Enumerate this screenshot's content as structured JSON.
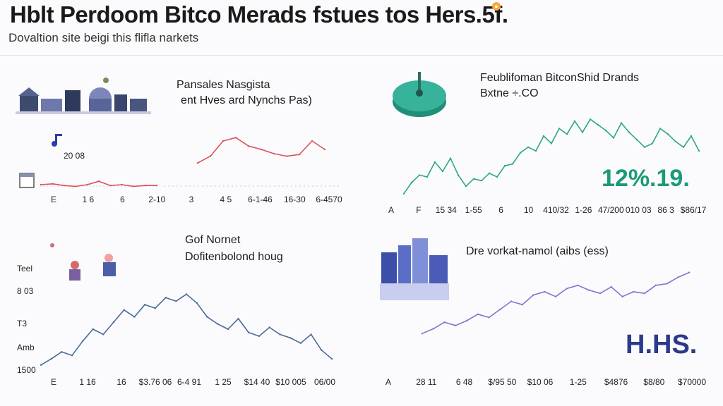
{
  "header": {
    "title": "Hblt Perdoom Bitco Merads fstues tos Hers.5f.",
    "subtitle": "Dovaltion site beigi this flifla narkets"
  },
  "colors": {
    "red_line": "#d9545a",
    "teal_line": "#2ea58a",
    "blue_line": "#4a6b99",
    "purple_line": "#8a6fd0",
    "teal_label": "#1a9a78",
    "navy_label": "#2b3a8c"
  },
  "panels": {
    "p1": {
      "title_line1": "Pansales Nasgista",
      "title_line2": "ent Hves ard Nynchs Pas)",
      "small_label": "20 08",
      "icons": [
        "city-illustration-icon",
        "music-note-icon",
        "calendar-icon"
      ]
    },
    "p2": {
      "title_line1": "Feublifoman BitconShid Drands",
      "title_line2": "Bxtne ÷.CO",
      "big_value": "12%.19.",
      "icons": [
        "teal-disc-illustration-icon"
      ]
    },
    "p3": {
      "title_line1": "Gof Nornet",
      "title_line2": "Dofitenbolond houg",
      "side_labels": [
        "Teel",
        "8 03",
        "T3",
        "Amb",
        "1500"
      ],
      "icons": [
        "people-illustration-icon"
      ]
    },
    "p4": {
      "title_line1": "Dre vorkat-namol (aibs (ess)",
      "big_value": "H.HS.",
      "icons": [
        "city-buildings-illustration-icon"
      ]
    }
  },
  "chart_data": [
    {
      "type": "line",
      "title": "Pansales Nasgista ent Hves ard Nynchs Pas)",
      "x_ticks": [
        "E",
        "1 6",
        "6",
        "2-10",
        "3",
        "4 5",
        "6-1-46",
        "16-30",
        "6-4570"
      ],
      "series": [
        {
          "values": [
            5,
            6,
            4,
            3,
            5,
            9,
            4,
            5,
            3,
            4,
            4
          ]
        },
        {
          "values": [
            14,
            22,
            40,
            44,
            34,
            30,
            25,
            22,
            24,
            40,
            30
          ]
        }
      ],
      "ylim": [
        0,
        50
      ]
    },
    {
      "type": "line",
      "title": "Feublifoman BitconShid Drands Bxtne ÷.CO",
      "x_ticks": [
        "A",
        "F",
        "15 34",
        "1-55",
        "6",
        "10",
        "410/32",
        "1-26",
        "47/200",
        "010 03",
        "86 3",
        "$86/17"
      ],
      "series": [
        {
          "values": [
            10,
            22,
            30,
            28,
            44,
            34,
            48,
            30,
            18,
            26,
            24,
            32,
            28,
            40,
            42,
            54,
            60,
            56,
            72,
            64,
            80,
            74,
            88,
            76,
            90,
            84,
            78,
            70,
            86,
            76,
            68,
            60,
            64,
            80,
            74,
            66,
            60,
            72,
            56
          ]
        }
      ],
      "ylim": [
        0,
        100
      ]
    },
    {
      "type": "line",
      "title": "Gof Nornet Dofitenbolond houg",
      "x_ticks": [
        "E",
        "1 16",
        "16",
        "$3.76 06",
        "6-4 91",
        "1 25",
        "$14 40",
        "$10 005",
        "06/00"
      ],
      "series": [
        {
          "values": [
            5,
            12,
            20,
            16,
            32,
            46,
            40,
            54,
            68,
            60,
            74,
            70,
            82,
            78,
            86,
            76,
            60,
            52,
            46,
            58,
            42,
            38,
            48,
            40,
            36,
            30,
            40,
            22,
            12
          ]
        }
      ],
      "ylim": [
        0,
        100
      ]
    },
    {
      "type": "line",
      "title": "Dre vorkat-namol (aibs (ess)",
      "x_ticks": [
        "A",
        "28 11",
        "6 48",
        "$/95 50",
        "$10 06",
        "1-25",
        "$4876",
        "$8/80",
        "$70000"
      ],
      "series": [
        {
          "values": [
            20,
            26,
            34,
            30,
            36,
            44,
            40,
            50,
            60,
            56,
            68,
            72,
            66,
            76,
            80,
            74,
            70,
            78,
            66,
            72,
            70,
            80,
            82,
            90,
            96
          ]
        }
      ],
      "ylim": [
        0,
        100
      ]
    }
  ]
}
